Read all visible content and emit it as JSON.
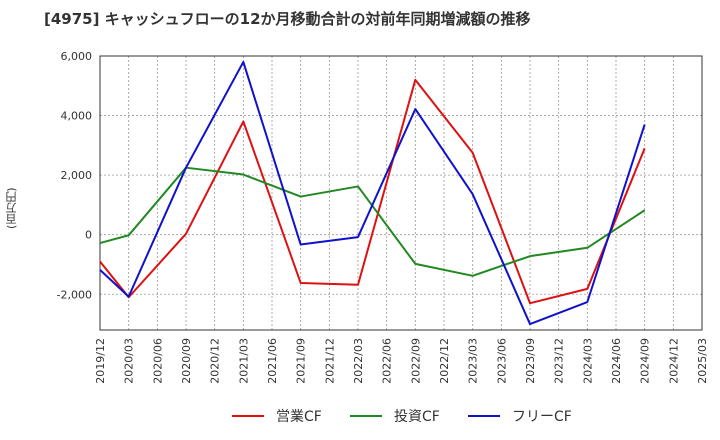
{
  "chart_data": {
    "type": "line",
    "title": "[4975]  キャッシュフローの12か月移動合計の対前年同期増減額の推移",
    "ylabel": "(百万円)",
    "xlabel": "",
    "ylim": [
      -3200,
      6000
    ],
    "yticks": [
      -2000,
      0,
      2000,
      4000,
      6000
    ],
    "ytick_labels": [
      "-2,000",
      "0",
      "2,000",
      "4,000",
      "6,000"
    ],
    "categories": [
      "2019/12",
      "2020/03",
      "2020/06",
      "2020/09",
      "2020/12",
      "2021/03",
      "2021/06",
      "2021/09",
      "2021/12",
      "2022/03",
      "2022/06",
      "2022/09",
      "2022/12",
      "2023/03",
      "2023/06",
      "2023/09",
      "2023/12",
      "2024/03",
      "2024/06",
      "2024/09",
      "2024/12",
      "2025/03"
    ],
    "grid": true,
    "legend": "bottom",
    "series": [
      {
        "name": "営業CF",
        "color": "#dd1111",
        "values": [
          -900,
          -2100,
          null,
          30,
          null,
          3800,
          null,
          -1620,
          null,
          -1680,
          null,
          5200,
          null,
          2750,
          null,
          -2300,
          null,
          -1820,
          null,
          2900,
          null,
          null
        ]
      },
      {
        "name": "投資CF",
        "color": "#228822",
        "values": [
          -280,
          -20,
          null,
          2250,
          null,
          2020,
          null,
          1280,
          null,
          1620,
          null,
          -980,
          null,
          -1380,
          null,
          -720,
          null,
          -440,
          null,
          820,
          null,
          null
        ]
      },
      {
        "name": "フリーCF",
        "color": "#1111cc",
        "values": [
          -1180,
          -2080,
          null,
          2250,
          null,
          5800,
          null,
          -330,
          null,
          -80,
          null,
          4220,
          null,
          1360,
          null,
          -3000,
          null,
          -2260,
          null,
          3700,
          null,
          null
        ]
      }
    ]
  }
}
